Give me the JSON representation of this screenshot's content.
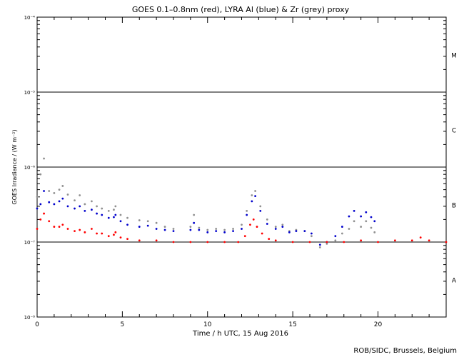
{
  "chart_data": {
    "type": "scatter",
    "title": "GOES 0.1–0.8nm (red), LYRA Al (blue) & Zr (grey) proxy",
    "xlabel": "Time / h UTC, 15 Aug 2016",
    "ylabel": "GOES Irradiance / (W m⁻²)",
    "credit": "ROB/SIDC, Brussels, Belgium",
    "xlim": [
      0,
      24
    ],
    "ylim": [
      1e-08,
      0.0001
    ],
    "yscale": "log",
    "x_ticks": [
      0,
      5,
      10,
      15,
      20
    ],
    "x_tick_labels": [
      "0",
      "5",
      "10",
      "15",
      "20"
    ],
    "y_ticks": [
      1e-08,
      1e-07,
      1e-06,
      1e-05,
      0.0001
    ],
    "y_tick_labels": [
      "10⁻⁸",
      "10⁻⁷",
      "10⁻⁶",
      "10⁻⁵",
      "10⁻⁴"
    ],
    "reference_lines": [
      1e-07,
      1e-06,
      1e-05
    ],
    "flare_classes": [
      {
        "label": "M",
        "center": 3.16e-05
      },
      {
        "label": "C",
        "center": 3.16e-06
      },
      {
        "label": "B",
        "center": 3.16e-07
      },
      {
        "label": "A",
        "center": 3.16e-08
      }
    ],
    "series": [
      {
        "color": "#ff0000",
        "x": [
          0.0,
          0.2,
          0.4,
          0.7,
          1.0,
          1.3,
          1.5,
          1.8,
          2.2,
          2.5,
          2.8,
          3.2,
          3.5,
          3.8,
          4.2,
          4.5,
          4.6,
          4.9,
          5.3,
          6.0,
          7.0,
          8.0,
          9.0,
          10.0,
          11.0,
          11.8,
          12.2,
          12.5,
          12.7,
          12.9,
          13.2,
          13.6,
          14.0,
          15.0,
          16.0,
          17.0,
          18.0,
          19.0,
          20.0,
          21.0,
          22.0,
          22.5,
          23.0,
          24.0
        ],
        "y": [
          1.5e-07,
          2e-07,
          2.4e-07,
          1.9e-07,
          1.6e-07,
          1.6e-07,
          1.7e-07,
          1.5e-07,
          1.4e-07,
          1.45e-07,
          1.35e-07,
          1.5e-07,
          1.3e-07,
          1.3e-07,
          1.2e-07,
          1.25e-07,
          1.35e-07,
          1.15e-07,
          1.1e-07,
          1.05e-07,
          1.05e-07,
          1e-07,
          1e-07,
          1e-07,
          1e-07,
          1e-07,
          1.2e-07,
          1.7e-07,
          2e-07,
          1.6e-07,
          1.3e-07,
          1.1e-07,
          1.05e-07,
          1e-07,
          1e-07,
          1e-07,
          1e-07,
          1.05e-07,
          1e-07,
          1.05e-07,
          1.05e-07,
          1.15e-07,
          1.05e-07,
          1e-07
        ]
      },
      {
        "color": "#0000cc",
        "x": [
          0.0,
          0.2,
          0.4,
          0.7,
          1.0,
          1.3,
          1.5,
          1.8,
          2.2,
          2.5,
          2.8,
          3.2,
          3.5,
          3.8,
          4.2,
          4.5,
          4.6,
          4.9,
          5.3,
          6.0,
          6.5,
          7.0,
          7.5,
          8.0,
          9.0,
          9.2,
          9.5,
          10.0,
          10.5,
          11.0,
          11.5,
          12.0,
          12.3,
          12.6,
          12.8,
          13.1,
          13.5,
          14.0,
          14.4,
          14.8,
          15.2,
          15.7,
          16.1,
          16.6,
          17.0,
          17.5,
          17.9,
          18.3,
          18.6,
          19.0,
          19.3,
          19.6,
          19.8
        ],
        "y": [
          2.8e-07,
          3.2e-07,
          4.8e-07,
          3.4e-07,
          3.2e-07,
          3.5e-07,
          3.8e-07,
          3e-07,
          2.8e-07,
          3e-07,
          2.6e-07,
          2.7e-07,
          2.4e-07,
          2.3e-07,
          2.1e-07,
          2.15e-07,
          2.3e-07,
          1.9e-07,
          1.7e-07,
          1.6e-07,
          1.65e-07,
          1.5e-07,
          1.45e-07,
          1.4e-07,
          1.45e-07,
          1.8e-07,
          1.45e-07,
          1.35e-07,
          1.4e-07,
          1.35e-07,
          1.4e-07,
          1.5e-07,
          2.3e-07,
          3.5e-07,
          4.1e-07,
          2.6e-07,
          1.75e-07,
          1.5e-07,
          1.6e-07,
          1.35e-07,
          1.4e-07,
          1.4e-07,
          1.3e-07,
          9.2e-08,
          1e-07,
          1.2e-07,
          1.6e-07,
          2.2e-07,
          2.6e-07,
          2.2e-07,
          2.5e-07,
          2.15e-07,
          1.9e-07
        ]
      },
      {
        "color": "#909090",
        "x": [
          0.0,
          0.2,
          0.4,
          0.7,
          1.0,
          1.3,
          1.5,
          1.8,
          2.2,
          2.5,
          2.8,
          3.2,
          3.5,
          3.8,
          4.2,
          4.5,
          4.6,
          4.9,
          5.3,
          6.0,
          6.5,
          7.0,
          7.5,
          8.0,
          9.0,
          9.2,
          9.5,
          10.0,
          10.5,
          11.0,
          11.5,
          12.0,
          12.3,
          12.6,
          12.8,
          13.1,
          13.5,
          14.0,
          14.4,
          14.8,
          15.2,
          15.7,
          16.1,
          16.6,
          17.0,
          17.5,
          17.9,
          18.3,
          18.6,
          19.0,
          19.3,
          19.6,
          19.8
        ],
        "y": [
          4e-07,
          8e-07,
          1.3e-06,
          4.8e-07,
          4.5e-07,
          5e-07,
          5.6e-07,
          4.3e-07,
          3.6e-07,
          4.2e-07,
          3.2e-07,
          3.5e-07,
          3e-07,
          2.8e-07,
          2.6e-07,
          2.7e-07,
          3e-07,
          2.3e-07,
          2.1e-07,
          1.95e-07,
          1.9e-07,
          1.8e-07,
          1.6e-07,
          1.5e-07,
          1.6e-07,
          2.3e-07,
          1.55e-07,
          1.45e-07,
          1.5e-07,
          1.45e-07,
          1.5e-07,
          1.7e-07,
          2.6e-07,
          4.2e-07,
          4.8e-07,
          3e-07,
          2e-07,
          1.6e-07,
          1.7e-07,
          1.4e-07,
          1.45e-07,
          1.4e-07,
          1.2e-07,
          8.5e-08,
          9.5e-08,
          1.05e-07,
          1.3e-07,
          1.5e-07,
          1.9e-07,
          1.6e-07,
          1.9e-07,
          1.55e-07,
          1.35e-07
        ]
      }
    ]
  }
}
